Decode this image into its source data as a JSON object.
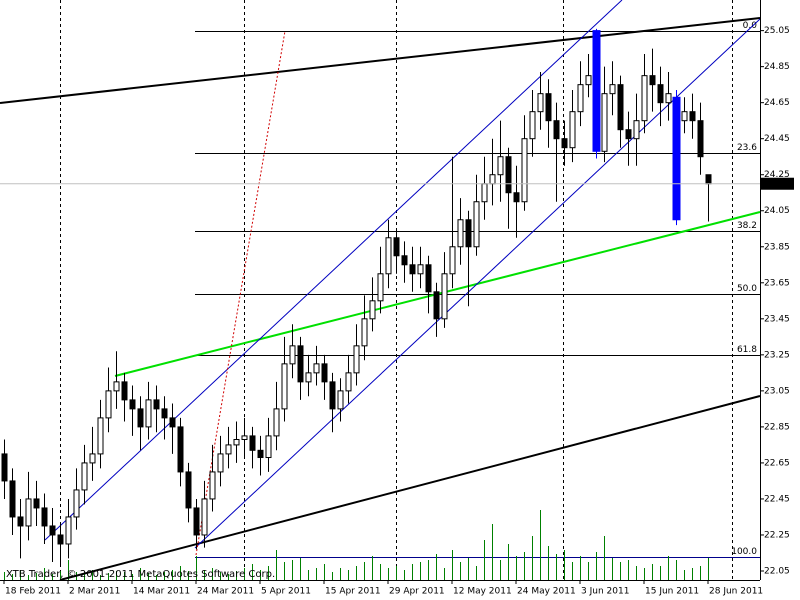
{
  "chart_data": {
    "type": "candlestick",
    "categories": [
      "18 Feb 2011",
      null,
      null,
      null,
      null,
      null,
      null,
      null,
      "2 Mar 2011",
      null,
      null,
      null,
      null,
      null,
      null,
      null,
      "14 Mar 2011",
      null,
      null,
      null,
      null,
      null,
      null,
      null,
      "24 Mar 2011",
      null,
      null,
      null,
      null,
      null,
      null,
      null,
      "5 Apr 2011",
      null,
      null,
      null,
      null,
      null,
      null,
      null,
      "15 Apr 2011",
      null,
      null,
      null,
      null,
      null,
      null,
      null,
      "29 Apr 2011",
      null,
      null,
      null,
      null,
      null,
      null,
      null,
      "12 May 2011",
      null,
      null,
      null,
      null,
      null,
      null,
      null,
      "24 May 2011",
      null,
      null,
      null,
      null,
      null,
      null,
      null,
      "3 Jun 2011",
      null,
      null,
      null,
      null,
      null,
      null,
      null,
      "15 Jun 2011",
      null,
      null,
      null,
      null,
      null,
      null,
      null,
      "28 Jun 2011"
    ],
    "open": [
      22.7,
      22.55,
      22.35,
      22.3,
      22.45,
      22.4,
      22.3,
      22.25,
      22.2,
      22.35,
      22.5,
      22.65,
      22.7,
      22.9,
      23.05,
      23.1,
      23.0,
      22.95,
      22.85,
      23.0,
      22.95,
      22.9,
      22.85,
      22.6,
      22.4,
      22.25,
      22.45,
      22.6,
      22.7,
      22.75,
      22.78,
      22.8,
      22.72,
      22.68,
      22.8,
      22.95,
      23.2,
      23.3,
      23.1,
      23.15,
      23.2,
      23.1,
      22.95,
      23.05,
      23.15,
      23.3,
      23.45,
      23.55,
      23.7,
      23.9,
      23.8,
      23.75,
      23.7,
      23.75,
      23.6,
      23.45,
      23.7,
      23.85,
      24.0,
      23.85,
      24.1,
      24.2,
      24.25,
      24.35,
      24.15,
      24.1,
      24.45,
      24.6,
      24.7,
      24.55,
      24.45,
      24.4,
      24.6,
      24.75,
      25.05,
      24.38,
      24.7,
      24.75,
      24.5,
      24.45,
      24.55,
      24.8,
      24.75,
      24.65,
      24.68,
      24.55,
      24.6,
      24.55,
      24.25
    ],
    "high": [
      22.78,
      22.62,
      22.45,
      22.6,
      22.55,
      22.48,
      22.4,
      22.32,
      22.45,
      22.62,
      22.75,
      22.85,
      23.0,
      23.18,
      23.27,
      23.15,
      23.08,
      23.02,
      23.1,
      23.08,
      23.02,
      22.98,
      22.9,
      22.65,
      22.45,
      22.55,
      22.75,
      22.8,
      22.85,
      22.88,
      22.9,
      22.85,
      22.8,
      22.9,
      23.1,
      23.35,
      23.42,
      23.35,
      23.25,
      23.3,
      23.25,
      23.15,
      23.12,
      23.25,
      23.42,
      23.58,
      23.68,
      23.85,
      24.0,
      23.95,
      23.88,
      23.85,
      23.85,
      23.8,
      23.65,
      23.82,
      24.35,
      24.12,
      24.05,
      24.25,
      24.35,
      24.45,
      24.55,
      24.4,
      24.3,
      24.58,
      24.72,
      24.82,
      24.78,
      24.65,
      24.55,
      24.72,
      24.88,
      24.92,
      25.06,
      24.85,
      24.88,
      24.8,
      24.6,
      24.7,
      24.92,
      24.95,
      24.85,
      24.82,
      24.72,
      24.68,
      24.7,
      24.65,
      24.25
    ],
    "low": [
      22.45,
      22.25,
      22.12,
      22.22,
      22.3,
      22.2,
      22.1,
      22.08,
      22.12,
      22.28,
      22.42,
      22.55,
      22.62,
      22.82,
      22.95,
      22.88,
      22.8,
      22.72,
      22.78,
      22.82,
      22.78,
      22.7,
      22.52,
      22.32,
      22.17,
      22.18,
      22.38,
      22.52,
      22.62,
      22.65,
      22.68,
      22.62,
      22.58,
      22.6,
      22.72,
      22.88,
      23.12,
      23.0,
      23.02,
      23.08,
      23.0,
      22.82,
      22.88,
      22.98,
      23.08,
      23.22,
      23.38,
      23.48,
      23.62,
      23.7,
      23.65,
      23.6,
      23.62,
      23.48,
      23.35,
      23.4,
      23.62,
      23.75,
      23.52,
      23.8,
      24.0,
      24.08,
      24.1,
      23.95,
      23.9,
      24.05,
      24.35,
      24.5,
      24.4,
      24.1,
      24.3,
      24.32,
      24.52,
      24.68,
      24.34,
      24.32,
      24.58,
      24.4,
      24.3,
      24.3,
      24.48,
      24.6,
      24.52,
      24.55,
      23.97,
      24.48,
      24.45,
      24.25,
      23.99
    ],
    "close": [
      22.55,
      22.35,
      22.3,
      22.45,
      22.4,
      22.3,
      22.25,
      22.2,
      22.35,
      22.5,
      22.65,
      22.7,
      22.9,
      23.05,
      23.1,
      23.0,
      22.95,
      22.85,
      23.0,
      22.95,
      22.9,
      22.85,
      22.6,
      22.4,
      22.25,
      22.45,
      22.6,
      22.7,
      22.75,
      22.78,
      22.8,
      22.72,
      22.68,
      22.8,
      22.95,
      23.2,
      23.3,
      23.1,
      23.15,
      23.2,
      23.1,
      22.95,
      23.05,
      23.15,
      23.3,
      23.45,
      23.55,
      23.7,
      23.9,
      23.8,
      23.75,
      23.7,
      23.75,
      23.6,
      23.45,
      23.7,
      23.85,
      24.0,
      23.85,
      24.1,
      24.2,
      24.25,
      24.35,
      24.15,
      24.1,
      24.45,
      24.6,
      24.7,
      24.55,
      24.45,
      24.4,
      24.6,
      24.75,
      24.8,
      24.38,
      24.7,
      24.75,
      24.5,
      24.45,
      24.55,
      24.8,
      24.75,
      24.65,
      24.7,
      24.0,
      24.6,
      24.55,
      24.35,
      24.2
    ],
    "volume": [
      8,
      6,
      10,
      5,
      7,
      12,
      6,
      9,
      20,
      8,
      6,
      10,
      5,
      7,
      9,
      8,
      6,
      12,
      7,
      5,
      8,
      10,
      14,
      9,
      24,
      10,
      12,
      8,
      6,
      9,
      12,
      16,
      10,
      14,
      30,
      18,
      20,
      22,
      10,
      12,
      16,
      8,
      12,
      10,
      14,
      18,
      24,
      16,
      12,
      14,
      10,
      16,
      18,
      20,
      26,
      12,
      30,
      18,
      22,
      14,
      40,
      56,
      20,
      36,
      24,
      28,
      44,
      70,
      34,
      26,
      30,
      18,
      24,
      18,
      28,
      44,
      22,
      18,
      20,
      14,
      12,
      16,
      14,
      24,
      20,
      10,
      12,
      14,
      22
    ],
    "volume_lim": [
      0,
      100
    ],
    "volume_color": "#008000",
    "bull_color": "#ffffff",
    "bear_color": "#000000",
    "highlight_color": "#0000ff",
    "highlight": [
      74,
      84
    ],
    "ylim": [
      22.0,
      25.22
    ],
    "yticks": [
      {
        "value": 25.05,
        "label": "25.05"
      },
      24.85,
      24.65,
      24.45,
      {
        "value": 24.25,
        "label": "24.25"
      },
      24.05,
      23.85,
      23.65,
      23.45,
      23.25,
      23.05,
      22.85,
      22.65,
      22.45,
      22.25,
      22.05
    ],
    "current_price": {
      "value": 24.2,
      "label": "24.20"
    },
    "fib_levels": [
      {
        "label": "0.0",
        "price": 25.05
      },
      {
        "label": "23.6",
        "price": 24.37
      },
      {
        "label": "38.2",
        "price": 23.94
      },
      {
        "label": "50.0",
        "price": 23.59
      },
      {
        "label": "61.8",
        "price": 23.25
      },
      {
        "label": "100.0",
        "price": 22.13
      }
    ],
    "copyright": "XTB Trader, © 2001-2011 MetaQuotes Software Corp."
  }
}
